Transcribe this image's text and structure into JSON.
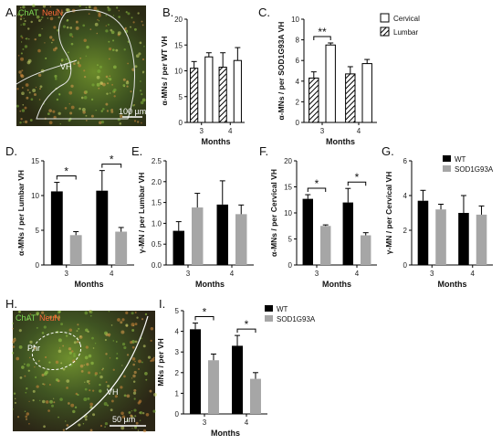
{
  "panel_labels": {
    "A": "A.",
    "B": "B.",
    "C": "C.",
    "D": "D.",
    "E": "E.",
    "F": "F.",
    "G": "G.",
    "H": "H.",
    "I": "I."
  },
  "micrograph_A": {
    "stain1": "ChAT",
    "stain2": "NeuN",
    "region": "VH",
    "scale": "100 µm"
  },
  "micrograph_H": {
    "stain1": "ChAT",
    "stain2": "NeuN",
    "region1": "Phr",
    "region2": "VH",
    "scale": "50 µm"
  },
  "legend_C": {
    "items": [
      {
        "label": "Cervical",
        "pattern": "open"
      },
      {
        "label": "Lumbar",
        "pattern": "hatched"
      }
    ]
  },
  "legend_G": {
    "items": [
      {
        "label": "WT",
        "color": "#000000"
      },
      {
        "label": "SOD1G93A",
        "color": "#a6a6a6"
      }
    ]
  },
  "legend_I": {
    "items": [
      {
        "label": "WT",
        "color": "#000000"
      },
      {
        "label": "SOD1G93A",
        "color": "#a6a6a6"
      }
    ]
  },
  "chart_data": [
    {
      "id": "B",
      "type": "bar",
      "ylabel": "α-MNs / per WT VH",
      "xlabel": "Months",
      "categories": [
        "3",
        "4"
      ],
      "ylim": [
        0,
        20
      ],
      "yticks": [
        0,
        5,
        10,
        15,
        20
      ],
      "series": [
        {
          "name": "Lumbar",
          "pattern": "hatched",
          "values": [
            10.5,
            10.7
          ],
          "err": [
            1.3,
            2.8
          ]
        },
        {
          "name": "Cervical",
          "pattern": "open",
          "values": [
            12.7,
            12.0
          ],
          "err": [
            0.8,
            2.5
          ]
        }
      ],
      "sig": []
    },
    {
      "id": "C",
      "type": "bar",
      "ylabel": "α-MNs / per SOD1G93A VH",
      "xlabel": "Months",
      "categories": [
        "3",
        "4"
      ],
      "ylim": [
        0,
        10
      ],
      "yticks": [
        0,
        2,
        4,
        6,
        8,
        10
      ],
      "series": [
        {
          "name": "Lumbar",
          "pattern": "hatched",
          "values": [
            4.3,
            4.7
          ],
          "err": [
            0.6,
            0.7
          ]
        },
        {
          "name": "Cervical",
          "pattern": "open",
          "values": [
            7.5,
            5.7
          ],
          "err": [
            0.2,
            0.4
          ]
        }
      ],
      "sig": [
        {
          "cat": 0,
          "label": "**"
        }
      ]
    },
    {
      "id": "D",
      "type": "bar",
      "ylabel": "α-MNs / per Lumbar VH",
      "xlabel": "Months",
      "categories": [
        "3",
        "4"
      ],
      "ylim": [
        0,
        15
      ],
      "yticks": [
        0,
        5,
        10,
        15
      ],
      "series": [
        {
          "name": "WT",
          "color": "#000000",
          "values": [
            10.6,
            10.7
          ],
          "err": [
            1.3,
            2.9
          ]
        },
        {
          "name": "SOD1G93A",
          "color": "#a6a6a6",
          "values": [
            4.3,
            4.8
          ],
          "err": [
            0.5,
            0.6
          ]
        }
      ],
      "sig": [
        {
          "cat": 0,
          "label": "*"
        },
        {
          "cat": 1,
          "label": "*"
        }
      ]
    },
    {
      "id": "E",
      "type": "bar",
      "ylabel": "γ-MN / per Lumbar VH",
      "xlabel": "Months",
      "categories": [
        "3",
        "4"
      ],
      "ylim": [
        0,
        2.5
      ],
      "yticks": [
        0.0,
        0.5,
        1.0,
        1.5,
        2.0,
        2.5
      ],
      "series": [
        {
          "name": "WT",
          "color": "#000000",
          "values": [
            0.82,
            1.45
          ],
          "err": [
            0.22,
            0.57
          ]
        },
        {
          "name": "SOD1G93A",
          "color": "#a6a6a6",
          "values": [
            1.38,
            1.22
          ],
          "err": [
            0.34,
            0.22
          ]
        }
      ],
      "sig": []
    },
    {
      "id": "F",
      "type": "bar",
      "ylabel": "α-MNs / per Cervical VH",
      "xlabel": "Months",
      "categories": [
        "3",
        "4"
      ],
      "ylim": [
        0,
        20
      ],
      "yticks": [
        0,
        5,
        10,
        15,
        20
      ],
      "series": [
        {
          "name": "WT",
          "color": "#000000",
          "values": [
            12.7,
            12.0
          ],
          "err": [
            0.8,
            2.7
          ]
        },
        {
          "name": "SOD1G93A",
          "color": "#a6a6a6",
          "values": [
            7.5,
            5.7
          ],
          "err": [
            0.2,
            0.5
          ]
        }
      ],
      "sig": [
        {
          "cat": 0,
          "label": "*"
        },
        {
          "cat": 1,
          "label": "*"
        }
      ]
    },
    {
      "id": "G",
      "type": "bar",
      "ylabel": "γ-MN / per Cervical VH",
      "xlabel": "Months",
      "categories": [
        "3",
        "4"
      ],
      "ylim": [
        0,
        6
      ],
      "yticks": [
        0,
        2,
        4,
        6
      ],
      "series": [
        {
          "name": "WT",
          "color": "#000000",
          "values": [
            3.7,
            3.0
          ],
          "err": [
            0.6,
            1.0
          ]
        },
        {
          "name": "SOD1G93A",
          "color": "#a6a6a6",
          "values": [
            3.2,
            2.9
          ],
          "err": [
            0.3,
            0.5
          ]
        }
      ],
      "sig": []
    },
    {
      "id": "I",
      "type": "bar",
      "ylabel": "MNs / per VH",
      "xlabel": "Months",
      "categories": [
        "3",
        "4"
      ],
      "ylim": [
        0,
        5
      ],
      "yticks": [
        0,
        1,
        2,
        3,
        4,
        5
      ],
      "series": [
        {
          "name": "WT",
          "color": "#000000",
          "values": [
            4.1,
            3.3
          ],
          "err": [
            0.3,
            0.5
          ]
        },
        {
          "name": "SOD1G93A",
          "color": "#a6a6a6",
          "values": [
            2.6,
            1.7
          ],
          "err": [
            0.3,
            0.3
          ]
        }
      ],
      "sig": [
        {
          "cat": 0,
          "label": "*"
        },
        {
          "cat": 1,
          "label": "*"
        }
      ]
    }
  ]
}
